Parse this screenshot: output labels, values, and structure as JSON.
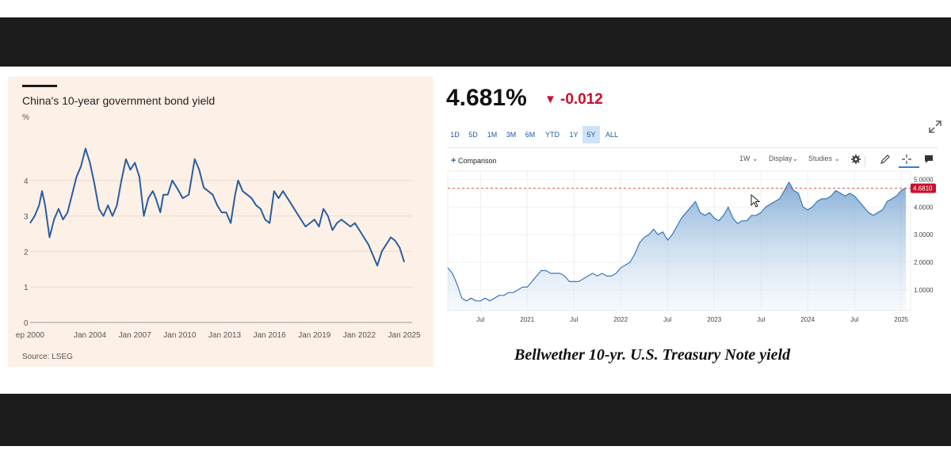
{
  "left_chart": {
    "title": "China's 10-year government bond yield",
    "unit": "%",
    "source": "Source: LSEG",
    "line_color": "#2a5d9f",
    "background": "#fdf0e6"
  },
  "right_chart": {
    "price": "4.681%",
    "change_icon": "down-triangle-icon",
    "change": "-0.012",
    "change_color": "#c8102e",
    "range_tabs": [
      "1D",
      "5D",
      "1M",
      "3M",
      "6M",
      "YTD",
      "1Y",
      "5Y",
      "ALL"
    ],
    "active_tab": "5Y",
    "comparison_label": "Comparison",
    "tools": {
      "interval": "1W",
      "display": "Display",
      "studies": "Studies"
    },
    "current_value_label": "4.6810",
    "top_axis_label": "5.0000",
    "line_color": "#3b78b8",
    "caption": "Bellwether 10-yr. U.S. Treasury Note yield"
  },
  "chart_data": [
    {
      "type": "line",
      "title": "China's 10-year government bond yield",
      "ylabel": "%",
      "ylim": [
        0,
        5
      ],
      "yticks": [
        0,
        1,
        2,
        3,
        4
      ],
      "xlim": [
        2000.0,
        2025.1
      ],
      "xticks": [
        2000,
        2004,
        2007,
        2010,
        2013,
        2016,
        2019,
        2022,
        2025
      ],
      "xtick_labels": [
        "ep 2000",
        "Jan 2004",
        "Jan 2007",
        "Jan 2010",
        "Jan 2013",
        "Jan 2016",
        "Jan 2019",
        "Jan 2022",
        "Jan 2025"
      ],
      "grid": "horizontal",
      "series": [
        {
          "x": [
            2000.0,
            2000.3,
            2000.6,
            2000.8,
            2001.0,
            2001.3,
            2001.6,
            2001.9,
            2002.2,
            2002.5,
            2002.8,
            2003.1,
            2003.4,
            2003.7,
            2004.0,
            2004.3,
            2004.6,
            2004.9,
            2005.2,
            2005.5,
            2005.8,
            2006.1,
            2006.4,
            2006.7,
            2007.0,
            2007.3,
            2007.6,
            2007.9,
            2008.2,
            2008.4,
            2008.7,
            2008.9,
            2009.2,
            2009.5,
            2009.8,
            2010.2,
            2010.6,
            2011.0,
            2011.3,
            2011.6,
            2011.9,
            2012.2,
            2012.5,
            2012.8,
            2013.1,
            2013.4,
            2013.7,
            2013.9,
            2014.2,
            2014.5,
            2014.8,
            2015.1,
            2015.4,
            2015.7,
            2016.0,
            2016.3,
            2016.6,
            2016.9,
            2017.2,
            2017.5,
            2017.8,
            2018.1,
            2018.4,
            2018.7,
            2019.0,
            2019.3,
            2019.6,
            2019.9,
            2020.2,
            2020.5,
            2020.8,
            2021.1,
            2021.4,
            2021.7,
            2022.0,
            2022.3,
            2022.6,
            2022.9,
            2023.2,
            2023.5,
            2023.8,
            2024.1,
            2024.4,
            2024.7,
            2025.0
          ],
          "y": [
            2.8,
            3.0,
            3.3,
            3.7,
            3.3,
            2.4,
            2.9,
            3.2,
            2.9,
            3.1,
            3.6,
            4.1,
            4.4,
            4.9,
            4.5,
            3.9,
            3.2,
            3.0,
            3.3,
            3.0,
            3.3,
            4.0,
            4.6,
            4.3,
            4.5,
            4.1,
            3.0,
            3.5,
            3.7,
            3.5,
            3.1,
            3.6,
            3.6,
            4.0,
            3.8,
            3.5,
            3.6,
            4.6,
            4.3,
            3.8,
            3.7,
            3.6,
            3.3,
            3.1,
            3.1,
            2.8,
            3.6,
            4.0,
            3.7,
            3.6,
            3.5,
            3.3,
            3.2,
            2.9,
            2.8,
            3.7,
            3.5,
            3.7,
            3.5,
            3.3,
            3.1,
            2.9,
            2.7,
            2.8,
            2.9,
            2.7,
            3.2,
            3.0,
            2.6,
            2.8,
            2.9,
            2.8,
            2.7,
            2.8,
            2.6,
            2.4,
            2.2,
            1.9,
            1.6,
            2.0,
            2.2,
            2.4,
            2.3,
            2.1,
            1.7
          ]
        }
      ]
    },
    {
      "type": "area",
      "title": "Bellwether 10-yr. U.S. Treasury Note yield",
      "ylim": [
        0.25,
        5.3
      ],
      "yticks": [
        1,
        2,
        3,
        4,
        5
      ],
      "ytick_labels": [
        "1.0000",
        "2.0000",
        "3.0000",
        "4.0000",
        "5.0000"
      ],
      "xlim": [
        2020.15,
        2025.1
      ],
      "xticks": [
        2020.5,
        2021.0,
        2021.5,
        2022.0,
        2022.5,
        2023.0,
        2023.5,
        2024.0,
        2024.5,
        2025.0
      ],
      "xtick_labels": [
        "Jul",
        "2021",
        "Jul",
        "2022",
        "Jul",
        "2023",
        "Jul",
        "2024",
        "Jul",
        "2025"
      ],
      "reference_line": 4.681,
      "grid": "both",
      "series": [
        {
          "x": [
            2020.15,
            2020.2,
            2020.25,
            2020.3,
            2020.35,
            2020.4,
            2020.45,
            2020.5,
            2020.55,
            2020.6,
            2020.65,
            2020.7,
            2020.75,
            2020.8,
            2020.85,
            2020.9,
            2020.95,
            2021.0,
            2021.05,
            2021.1,
            2021.15,
            2021.2,
            2021.25,
            2021.3,
            2021.35,
            2021.4,
            2021.45,
            2021.5,
            2021.55,
            2021.6,
            2021.65,
            2021.7,
            2021.75,
            2021.8,
            2021.85,
            2021.9,
            2021.95,
            2022.0,
            2022.05,
            2022.1,
            2022.15,
            2022.2,
            2022.25,
            2022.3,
            2022.35,
            2022.4,
            2022.45,
            2022.5,
            2022.55,
            2022.6,
            2022.65,
            2022.7,
            2022.75,
            2022.8,
            2022.85,
            2022.9,
            2022.95,
            2023.0,
            2023.05,
            2023.1,
            2023.15,
            2023.2,
            2023.25,
            2023.3,
            2023.35,
            2023.4,
            2023.45,
            2023.5,
            2023.55,
            2023.6,
            2023.65,
            2023.7,
            2023.75,
            2023.8,
            2023.85,
            2023.9,
            2023.95,
            2024.0,
            2024.05,
            2024.1,
            2024.15,
            2024.2,
            2024.25,
            2024.3,
            2024.35,
            2024.4,
            2024.45,
            2024.5,
            2024.55,
            2024.6,
            2024.65,
            2024.7,
            2024.75,
            2024.8,
            2024.85,
            2024.9,
            2024.95,
            2025.0,
            2025.05
          ],
          "y": [
            1.8,
            1.6,
            1.2,
            0.7,
            0.6,
            0.7,
            0.6,
            0.6,
            0.7,
            0.6,
            0.7,
            0.8,
            0.8,
            0.9,
            0.9,
            1.0,
            1.1,
            1.1,
            1.3,
            1.5,
            1.7,
            1.7,
            1.6,
            1.6,
            1.6,
            1.5,
            1.3,
            1.3,
            1.3,
            1.4,
            1.5,
            1.6,
            1.5,
            1.6,
            1.5,
            1.5,
            1.6,
            1.8,
            1.9,
            2.0,
            2.3,
            2.7,
            2.9,
            3.0,
            3.2,
            3.0,
            3.1,
            2.8,
            3.0,
            3.3,
            3.6,
            3.8,
            4.0,
            4.2,
            3.8,
            3.7,
            3.8,
            3.6,
            3.5,
            3.7,
            4.0,
            3.6,
            3.4,
            3.5,
            3.5,
            3.7,
            3.7,
            3.8,
            4.0,
            4.1,
            4.2,
            4.3,
            4.6,
            4.9,
            4.6,
            4.5,
            4.0,
            3.9,
            4.0,
            4.2,
            4.3,
            4.3,
            4.4,
            4.6,
            4.5,
            4.4,
            4.5,
            4.4,
            4.2,
            4.0,
            3.8,
            3.7,
            3.8,
            3.9,
            4.2,
            4.3,
            4.4,
            4.6,
            4.7
          ]
        }
      ]
    }
  ]
}
